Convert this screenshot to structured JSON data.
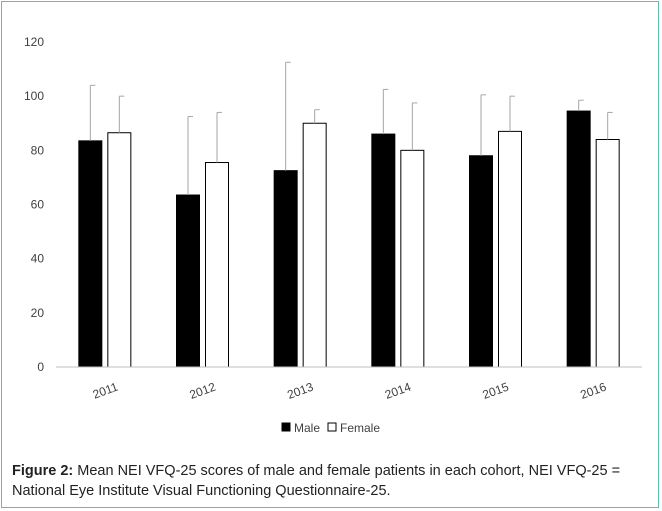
{
  "chart_data": {
    "type": "bar",
    "categories": [
      "2011",
      "2012",
      "2013",
      "2014",
      "2015",
      "2016"
    ],
    "series": [
      {
        "name": "Male",
        "values": [
          83.5,
          63.5,
          72.5,
          86,
          78,
          94.5
        ],
        "error_upper": [
          104,
          92.5,
          112.5,
          102.5,
          100.5,
          98.5
        ],
        "fill": "#000000"
      },
      {
        "name": "Female",
        "values": [
          86.5,
          75.5,
          90,
          80,
          87,
          84
        ],
        "error_upper": [
          100,
          94,
          95,
          97.5,
          100,
          94
        ],
        "fill": "#ffffff"
      }
    ],
    "ylim": [
      0,
      120
    ],
    "yticks": [
      0,
      20,
      40,
      60,
      80,
      100,
      120
    ],
    "grid": false,
    "legend": "bottom",
    "error_bars": "upper"
  },
  "caption": {
    "lead": "Figure 2:",
    "text": " Mean NEI VFQ-25 scores of male and female patients in each cohort, NEI VFQ-25 = National Eye Institute Visual Functioning Questionnaire-25."
  },
  "colors": {
    "frame_border": "#59c2a8",
    "axis": "#bfbfbf",
    "error_bar": "#a6a6a6"
  }
}
